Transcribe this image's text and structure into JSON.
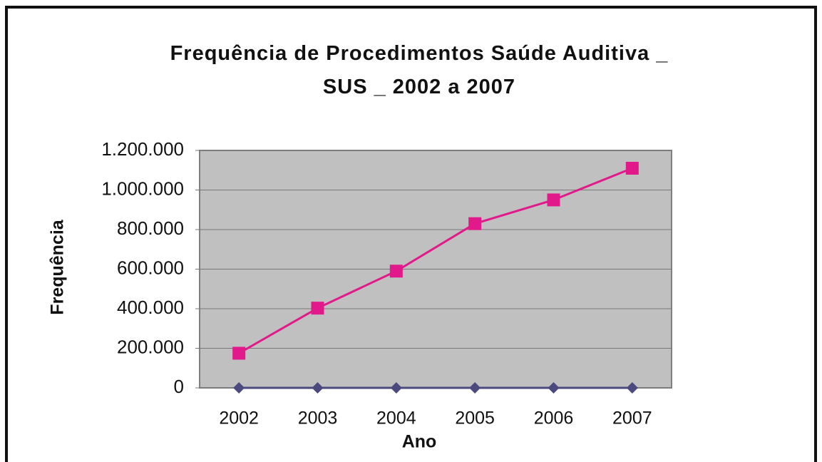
{
  "chart_data": {
    "type": "line",
    "title": "Frequência de Procedimentos Saúde Auditiva _\nSUS _ 2002 a 2007",
    "xlabel": "Ano",
    "ylabel": "Frequência",
    "categories": [
      "2002",
      "2003",
      "2004",
      "2005",
      "2006",
      "2007"
    ],
    "series": [
      {
        "color": "#e2198a",
        "marker": "square",
        "values": [
          175000,
          403000,
          590000,
          830000,
          950000,
          1110000
        ]
      },
      {
        "color": "#4b4a7e",
        "marker": "diamond",
        "values": [
          0,
          0,
          0,
          0,
          0,
          0
        ]
      }
    ],
    "ylim": [
      0,
      1200000
    ],
    "yticks": [
      0,
      {
        "value": 200000,
        "label": "200.000"
      },
      {
        "value": 400000,
        "label": "400.000"
      },
      {
        "value": 600000,
        "label": "600.000"
      },
      {
        "value": 800000,
        "label": "800.000"
      },
      {
        "value": 1000000,
        "label": "1.000.000"
      },
      {
        "value": 1200000,
        "label": "1.200.000"
      }
    ],
    "grid": true,
    "plot_background": "#c0c0c0"
  }
}
